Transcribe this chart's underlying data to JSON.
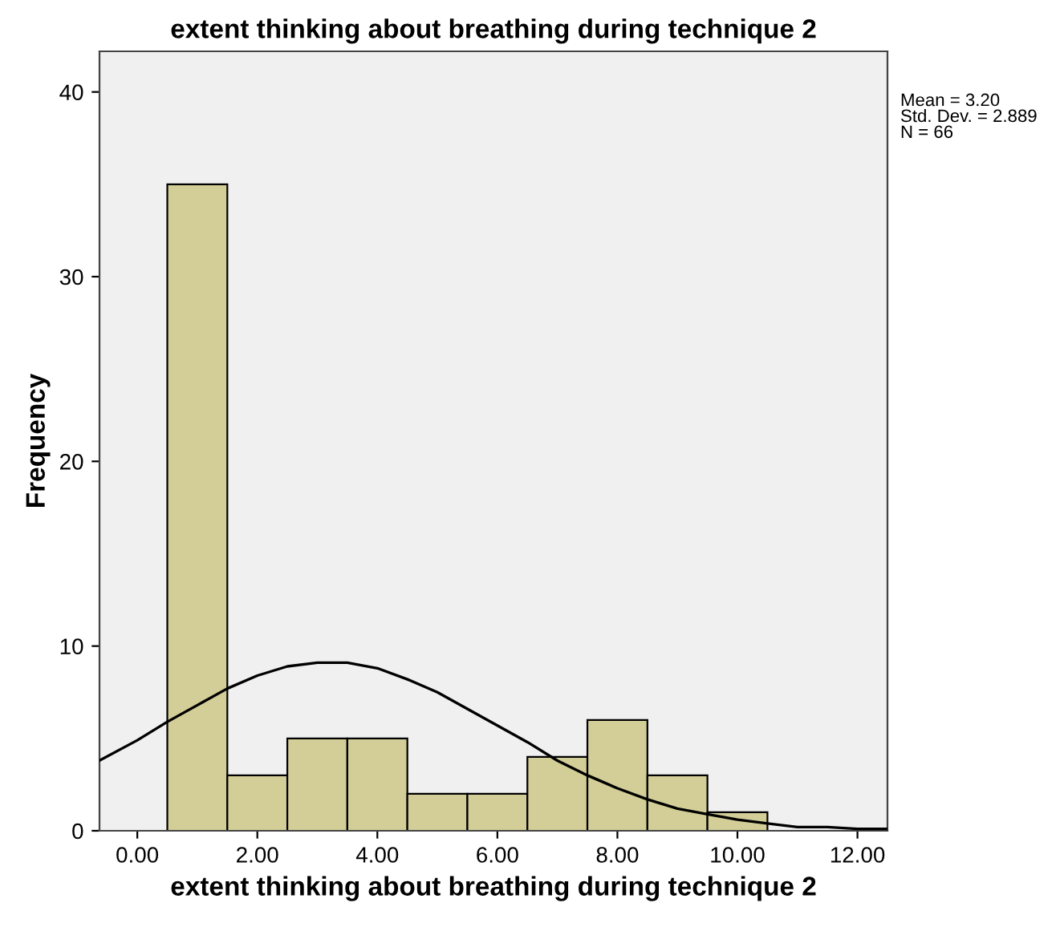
{
  "chart_data": {
    "type": "histogram",
    "title": "extent thinking about breathing during technique 2",
    "xlabel": "extent thinking about breathing during technique 2",
    "ylabel": "Frequency",
    "bins": [
      0.5,
      1.5,
      2.5,
      3.5,
      4.5,
      5.5,
      6.5,
      7.5,
      8.5,
      9.5,
      10.5
    ],
    "values": [
      35,
      3,
      5,
      5,
      2,
      2,
      4,
      6,
      3,
      1
    ],
    "color": "#d3ce97",
    "series": [
      {
        "type": "line",
        "color": "#000000",
        "x": [
          -0.63,
          0,
          0.5,
          1,
          1.5,
          2,
          2.5,
          3,
          3.2,
          3.5,
          4,
          4.5,
          5,
          5.5,
          6,
          6.5,
          7,
          7.5,
          8,
          8.5,
          9,
          9.5,
          10,
          10.5,
          11,
          11.5,
          12,
          12.5
        ],
        "values": [
          3.8,
          4.9,
          5.9,
          6.8,
          7.7,
          8.4,
          8.9,
          9.1,
          9.1,
          9.1,
          8.8,
          8.2,
          7.5,
          6.6,
          5.7,
          4.8,
          3.8,
          3.0,
          2.3,
          1.7,
          1.2,
          0.9,
          0.6,
          0.4,
          0.2,
          0.2,
          0.1,
          0.1
        ]
      }
    ],
    "xlim": [
      -0.63,
      12.5
    ],
    "ylim": [
      0,
      42.2
    ],
    "xticks": [
      {
        "value": 0,
        "label": "0.00"
      },
      {
        "value": 2,
        "label": "2.00"
      },
      {
        "value": 4,
        "label": "4.00"
      },
      {
        "value": 6,
        "label": "6.00"
      },
      {
        "value": 8,
        "label": "8.00"
      },
      {
        "value": 10,
        "label": "10.00"
      },
      {
        "value": 12,
        "label": "12.00"
      }
    ],
    "yticks": [
      0,
      10,
      20,
      30,
      40
    ],
    "grid": false,
    "annotations": [
      "Mean = 3.20\nStd. Dev. = 2.889\nN = 66"
    ]
  }
}
